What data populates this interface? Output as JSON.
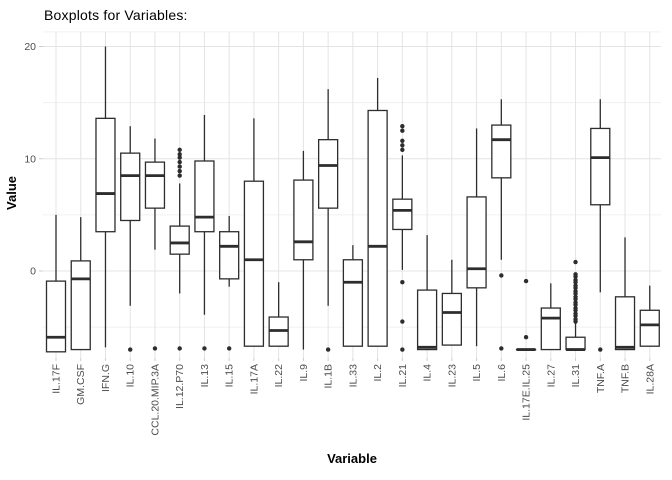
{
  "chart_data": {
    "type": "boxplot",
    "title": "Boxplots for Variables:",
    "xlabel": "Variable",
    "ylabel": "Value",
    "ylim": [
      -7.8,
      21.4
    ],
    "grid": true,
    "legend": "none",
    "yticks": [
      {
        "v": 0,
        "label": "0"
      },
      {
        "v": 10,
        "label": "10"
      },
      {
        "v": 20,
        "label": "20"
      }
    ],
    "y_minor": [
      -5,
      5,
      15,
      21.3
    ],
    "categories": [
      "IL.17F",
      "GM.CSF",
      "IFN.G",
      "IL.10",
      "CCL.20.MIP.3A",
      "IL.12.P70",
      "IL.13",
      "IL.15",
      "IL.17A",
      "IL.22",
      "IL.9",
      "IL.1B",
      "IL.33",
      "IL.2",
      "IL.21",
      "IL.4",
      "IL.23",
      "IL.5",
      "IL.6",
      "IL.17E.IL.25",
      "IL.27",
      "IL.31",
      "TNF.A",
      "TNF.B",
      "IL.28A"
    ],
    "series": [
      {
        "name": "IL.17F",
        "lo": -7.2,
        "q1": -7.2,
        "med": -5.9,
        "q3": -0.9,
        "hi": 5.0,
        "out": []
      },
      {
        "name": "GM.CSF",
        "lo": -7.0,
        "q1": -7.0,
        "med": -0.7,
        "q3": 0.9,
        "hi": 4.8,
        "out": []
      },
      {
        "name": "IFN.G",
        "lo": -6.8,
        "q1": 3.5,
        "med": 6.9,
        "q3": 13.6,
        "hi": 20.0,
        "out": []
      },
      {
        "name": "IL.10",
        "lo": -3.1,
        "q1": 4.5,
        "med": 8.5,
        "q3": 10.5,
        "hi": 12.9,
        "out": [
          -7.0
        ]
      },
      {
        "name": "CCL.20.MIP.3A",
        "lo": 1.9,
        "q1": 5.6,
        "med": 8.5,
        "q3": 9.7,
        "hi": 11.8,
        "out": [
          -6.9
        ]
      },
      {
        "name": "IL.12.P70",
        "lo": -2.0,
        "q1": 1.5,
        "med": 2.5,
        "q3": 4.0,
        "hi": 7.8,
        "out": [
          10.8,
          10.4,
          10.1,
          9.7,
          9.3,
          8.9,
          8.5,
          -6.9
        ]
      },
      {
        "name": "IL.13",
        "lo": -3.9,
        "q1": 3.5,
        "med": 4.8,
        "q3": 9.8,
        "hi": 13.9,
        "out": [
          -6.9
        ]
      },
      {
        "name": "IL.15",
        "lo": -1.4,
        "q1": -0.7,
        "med": 2.2,
        "q3": 3.5,
        "hi": 4.9,
        "out": [
          -6.9
        ]
      },
      {
        "name": "IL.17A",
        "lo": -6.7,
        "q1": -6.7,
        "med": 1.0,
        "q3": 8.0,
        "hi": 13.6,
        "out": []
      },
      {
        "name": "IL.22",
        "lo": -6.7,
        "q1": -6.7,
        "med": -5.3,
        "q3": -4.1,
        "hi": -1.0,
        "out": []
      },
      {
        "name": "IL.9",
        "lo": -7.0,
        "q1": 1.0,
        "med": 2.6,
        "q3": 8.1,
        "hi": 10.7,
        "out": []
      },
      {
        "name": "IL.1B",
        "lo": -3.1,
        "q1": 5.6,
        "med": 9.4,
        "q3": 11.7,
        "hi": 16.2,
        "out": [
          -7.0
        ]
      },
      {
        "name": "IL.33",
        "lo": -6.7,
        "q1": -6.7,
        "med": -1.0,
        "q3": 1.0,
        "hi": 2.3,
        "out": []
      },
      {
        "name": "IL.2",
        "lo": -6.7,
        "q1": -6.7,
        "med": 2.2,
        "q3": 14.3,
        "hi": 17.2,
        "out": []
      },
      {
        "name": "IL.21",
        "lo": 0.1,
        "q1": 3.7,
        "med": 5.4,
        "q3": 6.4,
        "hi": 10.3,
        "out": [
          12.9,
          12.5,
          11.6,
          11.2,
          10.8,
          -1.0,
          -4.5,
          -7.0
        ]
      },
      {
        "name": "IL.4",
        "lo": -7.0,
        "q1": -7.0,
        "med": -6.8,
        "q3": -1.7,
        "hi": 3.2,
        "out": []
      },
      {
        "name": "IL.23",
        "lo": -6.6,
        "q1": -6.6,
        "med": -3.7,
        "q3": -2.0,
        "hi": 1.0,
        "out": []
      },
      {
        "name": "IL.5",
        "lo": -6.7,
        "q1": -1.5,
        "med": 0.2,
        "q3": 6.6,
        "hi": 12.7,
        "out": []
      },
      {
        "name": "IL.6",
        "lo": 1.0,
        "q1": 8.3,
        "med": 11.7,
        "q3": 13.0,
        "hi": 15.3,
        "out": [
          -0.4,
          -6.9
        ]
      },
      {
        "name": "IL.17E.IL.25",
        "lo": -7.0,
        "q1": -7.0,
        "med": -7.0,
        "q3": -7.0,
        "hi": -7.0,
        "out": [
          -0.9,
          -5.9
        ]
      },
      {
        "name": "IL.27",
        "lo": -7.0,
        "q1": -7.0,
        "med": -4.2,
        "q3": -3.3,
        "hi": -1.1,
        "out": []
      },
      {
        "name": "IL.31",
        "lo": -7.0,
        "q1": -7.0,
        "med": -7.0,
        "q3": -5.9,
        "hi": -4.5,
        "out": [
          0.8,
          -0.3,
          -0.5,
          -0.8,
          -1.0,
          -1.3,
          -1.5,
          -1.8,
          -2.0,
          -2.3,
          -2.5,
          -2.8,
          -3.0,
          -3.3,
          -3.5,
          -3.8,
          -4.0,
          -4.3,
          -4.5
        ]
      },
      {
        "name": "TNF.A",
        "lo": -1.9,
        "q1": 5.9,
        "med": 10.1,
        "q3": 12.7,
        "hi": 15.3,
        "out": [
          -7.0
        ]
      },
      {
        "name": "TNF.B",
        "lo": -7.0,
        "q1": -7.0,
        "med": -6.8,
        "q3": -2.3,
        "hi": 3.0,
        "out": []
      },
      {
        "name": "IL.28A",
        "lo": -6.7,
        "q1": -6.7,
        "med": -4.8,
        "q3": -3.5,
        "hi": -1.3,
        "out": []
      }
    ],
    "colors": {
      "box_stroke": "#2d2d2d",
      "box_fill": "#ffffff",
      "grid_major": "#e4e4e4",
      "grid_minor": "#f0f0f0",
      "tick_mark": "#cccccc",
      "tick_label": "#4d4d4d",
      "background": "#ffffff"
    }
  }
}
